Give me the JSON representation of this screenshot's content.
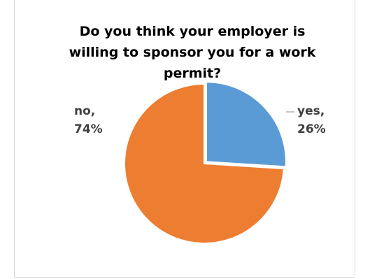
{
  "chart_data": {
    "type": "pie",
    "title": "Do you think your employer is willing to sponsor you for a work permit?",
    "slices": [
      {
        "label": "yes",
        "value": 26,
        "value_label": "26%",
        "color": "#5b9bd5",
        "exploded": true
      },
      {
        "label": "no",
        "value": 74,
        "value_label": "74%",
        "color": "#ed7d31",
        "exploded": false
      }
    ],
    "legend": "none",
    "data_labels": "outside"
  },
  "labels": {
    "yes_name": "yes,",
    "yes_pct": "26%",
    "no_name": "no,",
    "no_pct": "74%"
  }
}
